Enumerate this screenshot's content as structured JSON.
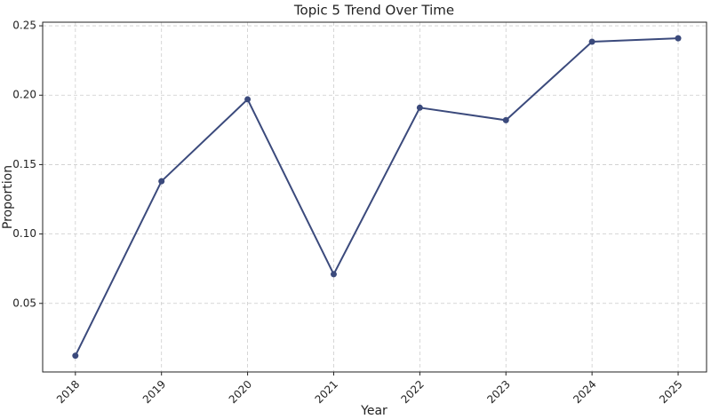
{
  "chart_data": {
    "type": "line",
    "title": "Topic 5 Trend Over Time",
    "x_label": "Year",
    "y_label": "Proportion",
    "x": [
      2018,
      2019,
      2020,
      2021,
      2022,
      2023,
      2024,
      2025
    ],
    "series": [
      {
        "name": "Topic 5",
        "color": "#3b4a7c",
        "values": [
          0.0123,
          0.138,
          0.197,
          0.071,
          0.191,
          0.182,
          0.2385,
          0.241
        ]
      }
    ],
    "xlim": [
      2017.62,
      2025.33
    ],
    "xticks": [
      2018,
      2019,
      2020,
      2021,
      2022,
      2023,
      2024,
      2025
    ],
    "ylim": [
      0.0006,
      0.2526
    ],
    "yticks": [
      0.05,
      {
        "value": 0.1,
        "label": "0.10"
      },
      0.15,
      {
        "value": 0.2,
        "label": "0.20"
      },
      0.25
    ],
    "grid": true
  }
}
